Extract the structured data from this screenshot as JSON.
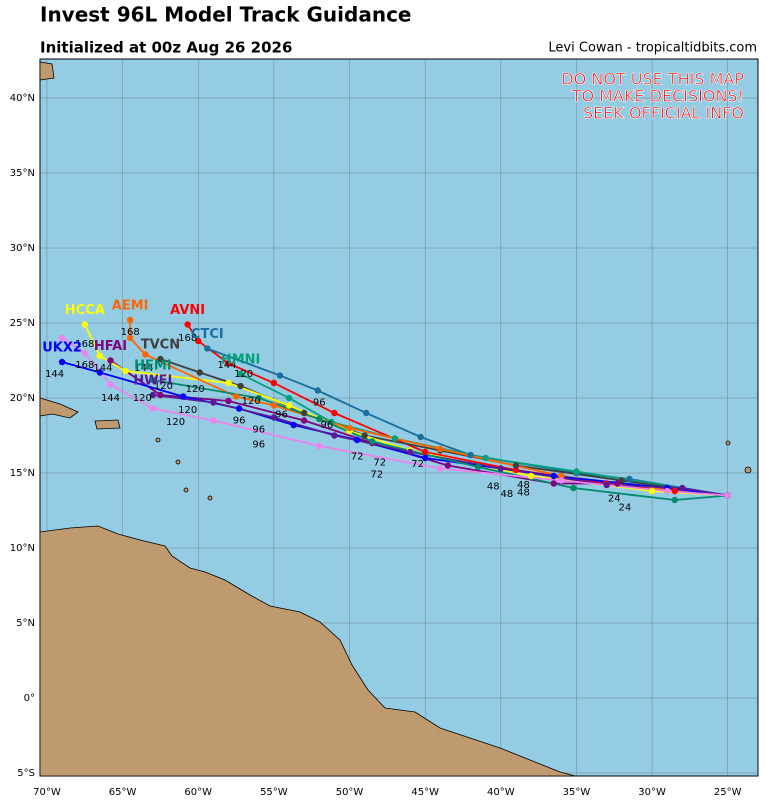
{
  "header": {
    "title": "Invest 96L Model Track Guidance",
    "subtitle": "Initialized at 00z Aug 26 2026",
    "credit": "Levi Cowan - tropicaltidbits.com"
  },
  "warning": [
    "DO NOT USE THIS MAP",
    "TO MAKE DECISIONS!",
    "SEEK OFFICIAL INFO"
  ],
  "map": {
    "xlim": [
      -70.46,
      -23
    ],
    "ylim": [
      -5.2,
      42.6
    ],
    "xticks": [
      {
        "value": -70,
        "label": "70°W"
      },
      {
        "value": -65,
        "label": "65°W"
      },
      {
        "value": -60,
        "label": "60°W"
      },
      {
        "value": -55,
        "label": "55°W"
      },
      {
        "value": -50,
        "label": "50°W"
      },
      {
        "value": -45,
        "label": "45°W"
      },
      {
        "value": -40,
        "label": "40°W"
      },
      {
        "value": -35,
        "label": "35°W"
      },
      {
        "value": -30,
        "label": "30°W"
      },
      {
        "value": -25,
        "label": "25°W"
      }
    ],
    "yticks": [
      {
        "value": -5,
        "label": "5°S"
      },
      {
        "value": 0,
        "label": "0°"
      },
      {
        "value": 5,
        "label": "5°N"
      },
      {
        "value": 10,
        "label": "10°N"
      },
      {
        "value": 15,
        "label": "15°N"
      },
      {
        "value": 20,
        "label": "20°N"
      },
      {
        "value": 25,
        "label": "25°N"
      },
      {
        "value": 30,
        "label": "30°N"
      },
      {
        "value": 35,
        "label": "35°N"
      },
      {
        "value": 40,
        "label": "40°N"
      }
    ]
  },
  "tracks": [
    {
      "name": "AVNI",
      "color": "#ff0000",
      "lon": [
        -25,
        -28.5,
        -33,
        -39,
        -45,
        -51,
        -55,
        -58,
        -60,
        -60.7
      ],
      "lat": [
        13.5,
        13.8,
        14.3,
        15.2,
        16.4,
        19,
        21,
        22.3,
        23.8,
        24.9
      ]
    },
    {
      "name": "CTCI",
      "color": "#1a6fa0",
      "lon": [
        -25,
        -31.5,
        -35,
        -42,
        -45.3,
        -48.9,
        -52.1,
        -54.6,
        -59.4
      ],
      "lat": [
        13.5,
        14.6,
        15,
        16.2,
        17.4,
        19,
        20.5,
        21.5,
        23.3
      ]
    },
    {
      "name": "HMNI",
      "color": "#00a07a",
      "lon": [
        -25,
        -35,
        -41,
        -47,
        -51.2,
        -54,
        -57.2
      ],
      "lat": [
        13.5,
        15.1,
        16,
        17.3,
        18.4,
        20,
        21.6
      ]
    },
    {
      "name": "TVCN",
      "color": "#404040",
      "lon": [
        -25,
        -32,
        -39,
        -44,
        -49,
        -53,
        -57.2,
        -59.9,
        -62.5
      ],
      "lat": [
        13.5,
        14.5,
        15.5,
        16.5,
        17.5,
        19,
        20.8,
        21.7,
        22.6
      ]
    },
    {
      "name": "HFAI",
      "color": "#800080",
      "lon": [
        -25,
        -32.3,
        -36.5,
        -43.5,
        -48.5,
        -53,
        -58,
        -62.5,
        -65.8
      ],
      "lat": [
        13.5,
        14.3,
        14.3,
        15.5,
        17,
        18.5,
        19.8,
        20.2,
        22.5
      ]
    },
    {
      "name": "HCCA",
      "color": "#ffff00",
      "lon": [
        -25,
        -30,
        -38,
        -46,
        -50,
        -54,
        -58,
        -64.8,
        -66.5,
        -67.5
      ],
      "lat": [
        13.5,
        13.8,
        14.8,
        16.5,
        17.8,
        19.5,
        21,
        21.8,
        22.8,
        24.9
      ]
    },
    {
      "name": "AEMI",
      "color": "#ff6600",
      "lon": [
        -25,
        -29,
        -36,
        -44,
        -50,
        -55,
        -57.5,
        -63.5,
        -64.5,
        -64.5
      ],
      "lat": [
        13.5,
        13.9,
        14.8,
        16.6,
        18,
        19.5,
        20.1,
        22.9,
        24,
        25.2
      ]
    },
    {
      "name": "UKX2",
      "color": "#0000ff",
      "lon": [
        -25,
        -29,
        -36.5,
        -45,
        -49.5,
        -53.7,
        -57.3,
        -61,
        -66.5,
        -69
      ],
      "lat": [
        13.5,
        14,
        14.8,
        16,
        17.2,
        18.2,
        19.3,
        20.1,
        21.7,
        22.4
      ]
    },
    {
      "name": "HWFI",
      "color": "#5a1a9a",
      "lon": [
        -25,
        -28,
        -33,
        -40,
        -46,
        -51,
        -55,
        -59,
        -63
      ],
      "lat": [
        13.5,
        14,
        14.2,
        15.3,
        16.4,
        17.5,
        18.7,
        19.7,
        20.2
      ]
    },
    {
      "name": "HEMI",
      "color": "#008b6b",
      "lon": [
        -25,
        -28.5,
        -35.2,
        -41.5,
        -48.5,
        -52,
        -56,
        -63
      ],
      "lat": [
        13.5,
        13.2,
        14,
        15.4,
        17.1,
        18.6,
        20,
        21.2
      ]
    },
    {
      "color": "#ee82ee",
      "lon": [
        -25,
        -29,
        -36,
        -44,
        -52,
        -59,
        -63,
        -65.8,
        -67.5,
        -69
      ],
      "lat": [
        13.5,
        13.8,
        14.5,
        15.3,
        16.8,
        18.5,
        19.3,
        20.9,
        23,
        24
      ]
    }
  ],
  "hour_labels": [
    {
      "text": "168",
      "lon": -67.5,
      "lat": 23.6
    },
    {
      "text": "168",
      "lon": -64.5,
      "lat": 24.4
    },
    {
      "text": "168",
      "lon": -60.7,
      "lat": 24
    },
    {
      "text": "168",
      "lon": -67.5,
      "lat": 22.2
    },
    {
      "text": "144",
      "lon": -69.5,
      "lat": 21.6
    },
    {
      "text": "144",
      "lon": -66.3,
      "lat": 22
    },
    {
      "text": "144",
      "lon": -63.6,
      "lat": 22
    },
    {
      "text": "144",
      "lon": -58.1,
      "lat": 22.2
    },
    {
      "text": "144",
      "lon": -65.8,
      "lat": 20
    },
    {
      "text": "120",
      "lon": -57,
      "lat": 21.6
    },
    {
      "text": "120",
      "lon": -62.3,
      "lat": 20.8
    },
    {
      "text": "120",
      "lon": -60.2,
      "lat": 20.6
    },
    {
      "text": "120",
      "lon": -63.7,
      "lat": 20
    },
    {
      "text": "120",
      "lon": -60.7,
      "lat": 19.2
    },
    {
      "text": "120",
      "lon": -61.5,
      "lat": 18.4
    },
    {
      "text": "120",
      "lon": -56.5,
      "lat": 19.8
    },
    {
      "text": "96",
      "lon": -52,
      "lat": 19.7
    },
    {
      "text": "96",
      "lon": -57.3,
      "lat": 18.5
    },
    {
      "text": "96",
      "lon": -56,
      "lat": 17.9
    },
    {
      "text": "96",
      "lon": -54.5,
      "lat": 18.9
    },
    {
      "text": "96",
      "lon": -56,
      "lat": 16.9
    },
    {
      "text": "96",
      "lon": -51.5,
      "lat": 18.2
    },
    {
      "text": "72",
      "lon": -49.5,
      "lat": 16.1
    },
    {
      "text": "72",
      "lon": -48,
      "lat": 15.7
    },
    {
      "text": "72",
      "lon": -48.2,
      "lat": 14.9
    },
    {
      "text": "72",
      "lon": -45.5,
      "lat": 15.6
    },
    {
      "text": "48",
      "lon": -40.5,
      "lat": 14.1
    },
    {
      "text": "48",
      "lon": -39.6,
      "lat": 13.6
    },
    {
      "text": "48",
      "lon": -38.5,
      "lat": 13.7
    },
    {
      "text": "48",
      "lon": -38.5,
      "lat": 14.2
    },
    {
      "text": "24",
      "lon": -32.5,
      "lat": 13.3
    },
    {
      "text": "24",
      "lon": -31.8,
      "lat": 12.7
    }
  ]
}
